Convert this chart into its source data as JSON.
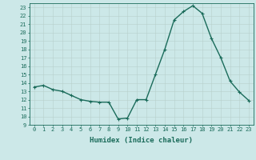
{
  "title": "",
  "xlabel": "Humidex (Indice chaleur)",
  "ylabel": "",
  "x": [
    0,
    1,
    2,
    3,
    4,
    5,
    6,
    7,
    8,
    9,
    10,
    11,
    12,
    13,
    14,
    15,
    16,
    17,
    18,
    19,
    20,
    21,
    22,
    23
  ],
  "y": [
    13.5,
    13.7,
    13.2,
    13.0,
    12.5,
    12.0,
    11.8,
    11.7,
    11.7,
    9.7,
    9.8,
    12.0,
    12.0,
    15.0,
    18.0,
    21.5,
    22.5,
    23.2,
    22.3,
    19.3,
    17.0,
    14.2,
    12.9,
    11.9
  ],
  "line_color": "#1a6b5a",
  "marker_color": "#1a6b5a",
  "bg_color": "#cce8e8",
  "grid_color": "#b8d0cc",
  "xlim": [
    -0.5,
    23.5
  ],
  "ylim": [
    9,
    23.5
  ],
  "yticks": [
    9,
    10,
    11,
    12,
    13,
    14,
    15,
    16,
    17,
    18,
    19,
    20,
    21,
    22,
    23
  ],
  "xticks": [
    0,
    1,
    2,
    3,
    4,
    5,
    6,
    7,
    8,
    9,
    10,
    11,
    12,
    13,
    14,
    15,
    16,
    17,
    18,
    19,
    20,
    21,
    22,
    23
  ],
  "tick_fontsize": 5.0,
  "label_fontsize": 6.5,
  "marker_size": 2.5,
  "line_width": 1.0
}
